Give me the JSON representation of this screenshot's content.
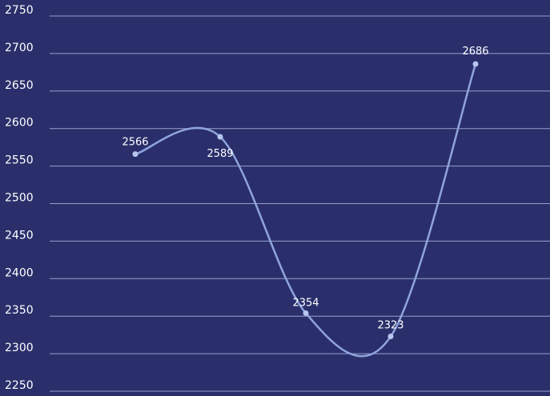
{
  "chart_data": {
    "type": "line",
    "title": "",
    "xlabel": "",
    "ylabel": "",
    "ylim": [
      2250,
      2750
    ],
    "yticks": [
      2750,
      2700,
      2650,
      2600,
      2550,
      2500,
      2450,
      2400,
      2350,
      2300,
      2250
    ],
    "grid": true,
    "smooth": true,
    "series": [
      {
        "values": [
          2566,
          2589,
          2354,
          2323,
          2686
        ]
      }
    ],
    "data_labels": [
      "2566",
      "2589",
      "2354",
      "2323",
      "2686"
    ],
    "colors": {
      "background": "#2a2f6b",
      "line": "#8fa4dd",
      "marker": "#b8c6ef",
      "grid": "#aab3de",
      "text": "#ffffff"
    }
  }
}
